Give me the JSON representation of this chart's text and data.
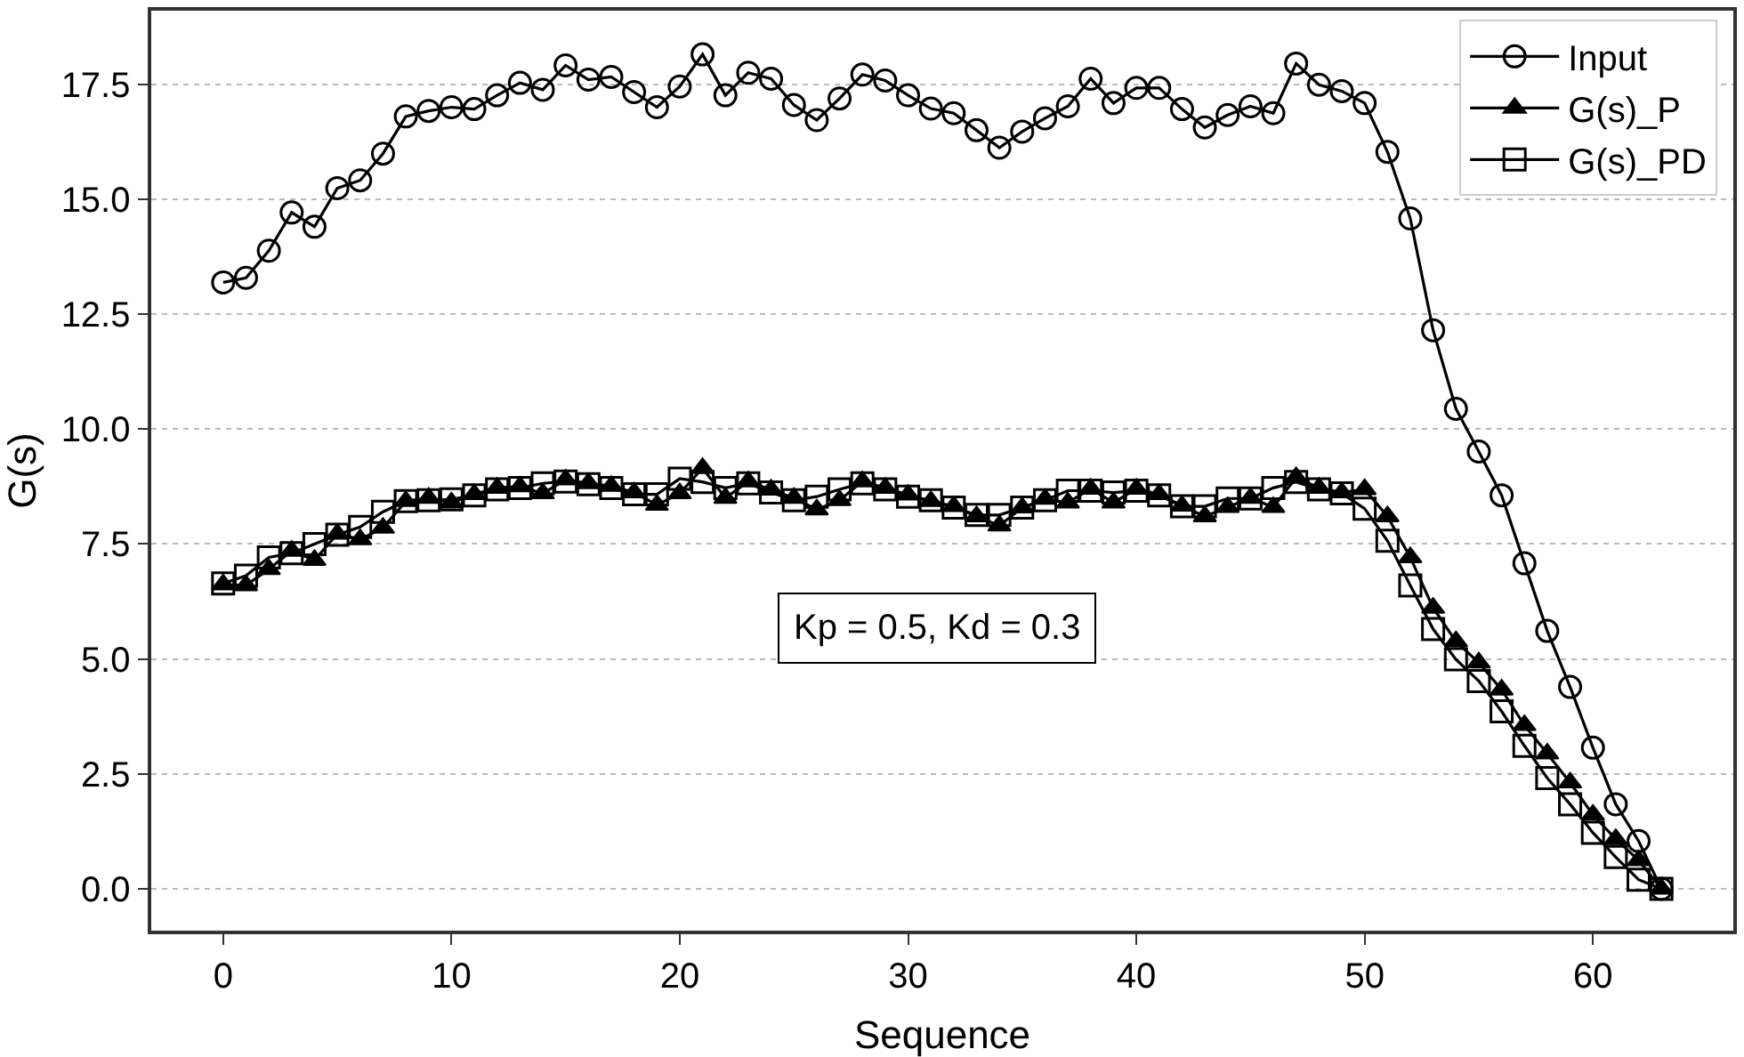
{
  "chart_data": {
    "type": "line",
    "xlabel": "Sequence",
    "ylabel": "G(s)",
    "x": [
      0,
      1,
      2,
      3,
      4,
      5,
      6,
      7,
      8,
      9,
      10,
      11,
      12,
      13,
      14,
      15,
      16,
      17,
      18,
      19,
      20,
      21,
      22,
      23,
      24,
      25,
      26,
      27,
      28,
      29,
      30,
      31,
      32,
      33,
      34,
      35,
      36,
      37,
      38,
      39,
      40,
      41,
      42,
      43,
      44,
      45,
      46,
      47,
      48,
      49,
      50,
      51,
      52,
      53,
      54,
      55,
      56,
      57,
      58,
      59,
      60,
      61,
      62,
      63
    ],
    "series": [
      {
        "name": "Input",
        "color": "#000000",
        "marker": "circle",
        "values": [
          13.19,
          13.29,
          13.88,
          14.71,
          14.4,
          15.24,
          15.41,
          15.99,
          16.8,
          16.92,
          17.0,
          16.96,
          17.26,
          17.53,
          17.38,
          17.91,
          17.6,
          17.66,
          17.33,
          17.0,
          17.45,
          18.15,
          17.26,
          17.75,
          17.62,
          17.05,
          16.72,
          17.19,
          17.71,
          17.58,
          17.26,
          16.97,
          16.87,
          16.5,
          16.12,
          16.47,
          16.76,
          17.02,
          17.62,
          17.09,
          17.42,
          17.42,
          16.96,
          16.56,
          16.83,
          17.02,
          16.87,
          17.95,
          17.49,
          17.35,
          17.09,
          16.03,
          14.58,
          12.15,
          10.44,
          9.51,
          8.56,
          7.08,
          5.61,
          4.39,
          3.07,
          1.84,
          1.04,
          0.0
        ]
      },
      {
        "name": "G(s)_P",
        "color": "#000000",
        "marker": "triangle",
        "values": [
          6.62,
          6.6,
          6.95,
          7.35,
          7.15,
          7.72,
          7.6,
          7.85,
          8.43,
          8.5,
          8.4,
          8.58,
          8.72,
          8.75,
          8.6,
          8.9,
          8.82,
          8.76,
          8.62,
          8.35,
          8.6,
          9.15,
          8.5,
          8.86,
          8.68,
          8.5,
          8.25,
          8.45,
          8.86,
          8.72,
          8.57,
          8.43,
          8.32,
          8.1,
          7.9,
          8.29,
          8.48,
          8.4,
          8.7,
          8.4,
          8.7,
          8.58,
          8.33,
          8.1,
          8.3,
          8.5,
          8.3,
          8.95,
          8.72,
          8.62,
          8.69,
          8.1,
          7.21,
          6.11,
          5.38,
          4.92,
          4.33,
          3.56,
          2.94,
          2.31,
          1.61,
          1.08,
          0.62,
          0.0
        ]
      },
      {
        "name": "G(s)_PD",
        "color": "#000000",
        "marker": "square",
        "values": [
          6.64,
          6.81,
          7.21,
          7.3,
          7.5,
          7.7,
          7.87,
          8.2,
          8.43,
          8.45,
          8.47,
          8.56,
          8.69,
          8.72,
          8.82,
          8.86,
          8.8,
          8.72,
          8.58,
          8.58,
          8.92,
          8.85,
          8.72,
          8.82,
          8.62,
          8.45,
          8.53,
          8.69,
          8.82,
          8.69,
          8.53,
          8.45,
          8.29,
          8.13,
          8.13,
          8.29,
          8.45,
          8.66,
          8.66,
          8.62,
          8.66,
          8.56,
          8.32,
          8.32,
          8.49,
          8.49,
          8.72,
          8.85,
          8.69,
          8.6,
          8.27,
          7.57,
          6.6,
          5.65,
          4.99,
          4.52,
          3.86,
          3.11,
          2.41,
          1.84,
          1.22,
          0.69,
          0.2,
          0.0
        ]
      }
    ],
    "xlim": [
      -3.15,
      66.15
    ],
    "xticks": [
      0,
      10,
      20,
      30,
      40,
      50,
      60
    ],
    "ylim": [
      -0.91,
      19.1
    ],
    "yticks": [
      {
        "value": 0,
        "label": "0.0"
      },
      2.5,
      {
        "value": 5,
        "label": "5.0"
      },
      7.5,
      {
        "value": 10,
        "label": "10.0"
      },
      12.5,
      {
        "value": 15,
        "label": "15.0"
      },
      17.5
    ],
    "grid": "y",
    "legend": "top right",
    "line_style": "solid",
    "annotations": [
      "Kp = 0.5, Kd = 0.3"
    ]
  }
}
